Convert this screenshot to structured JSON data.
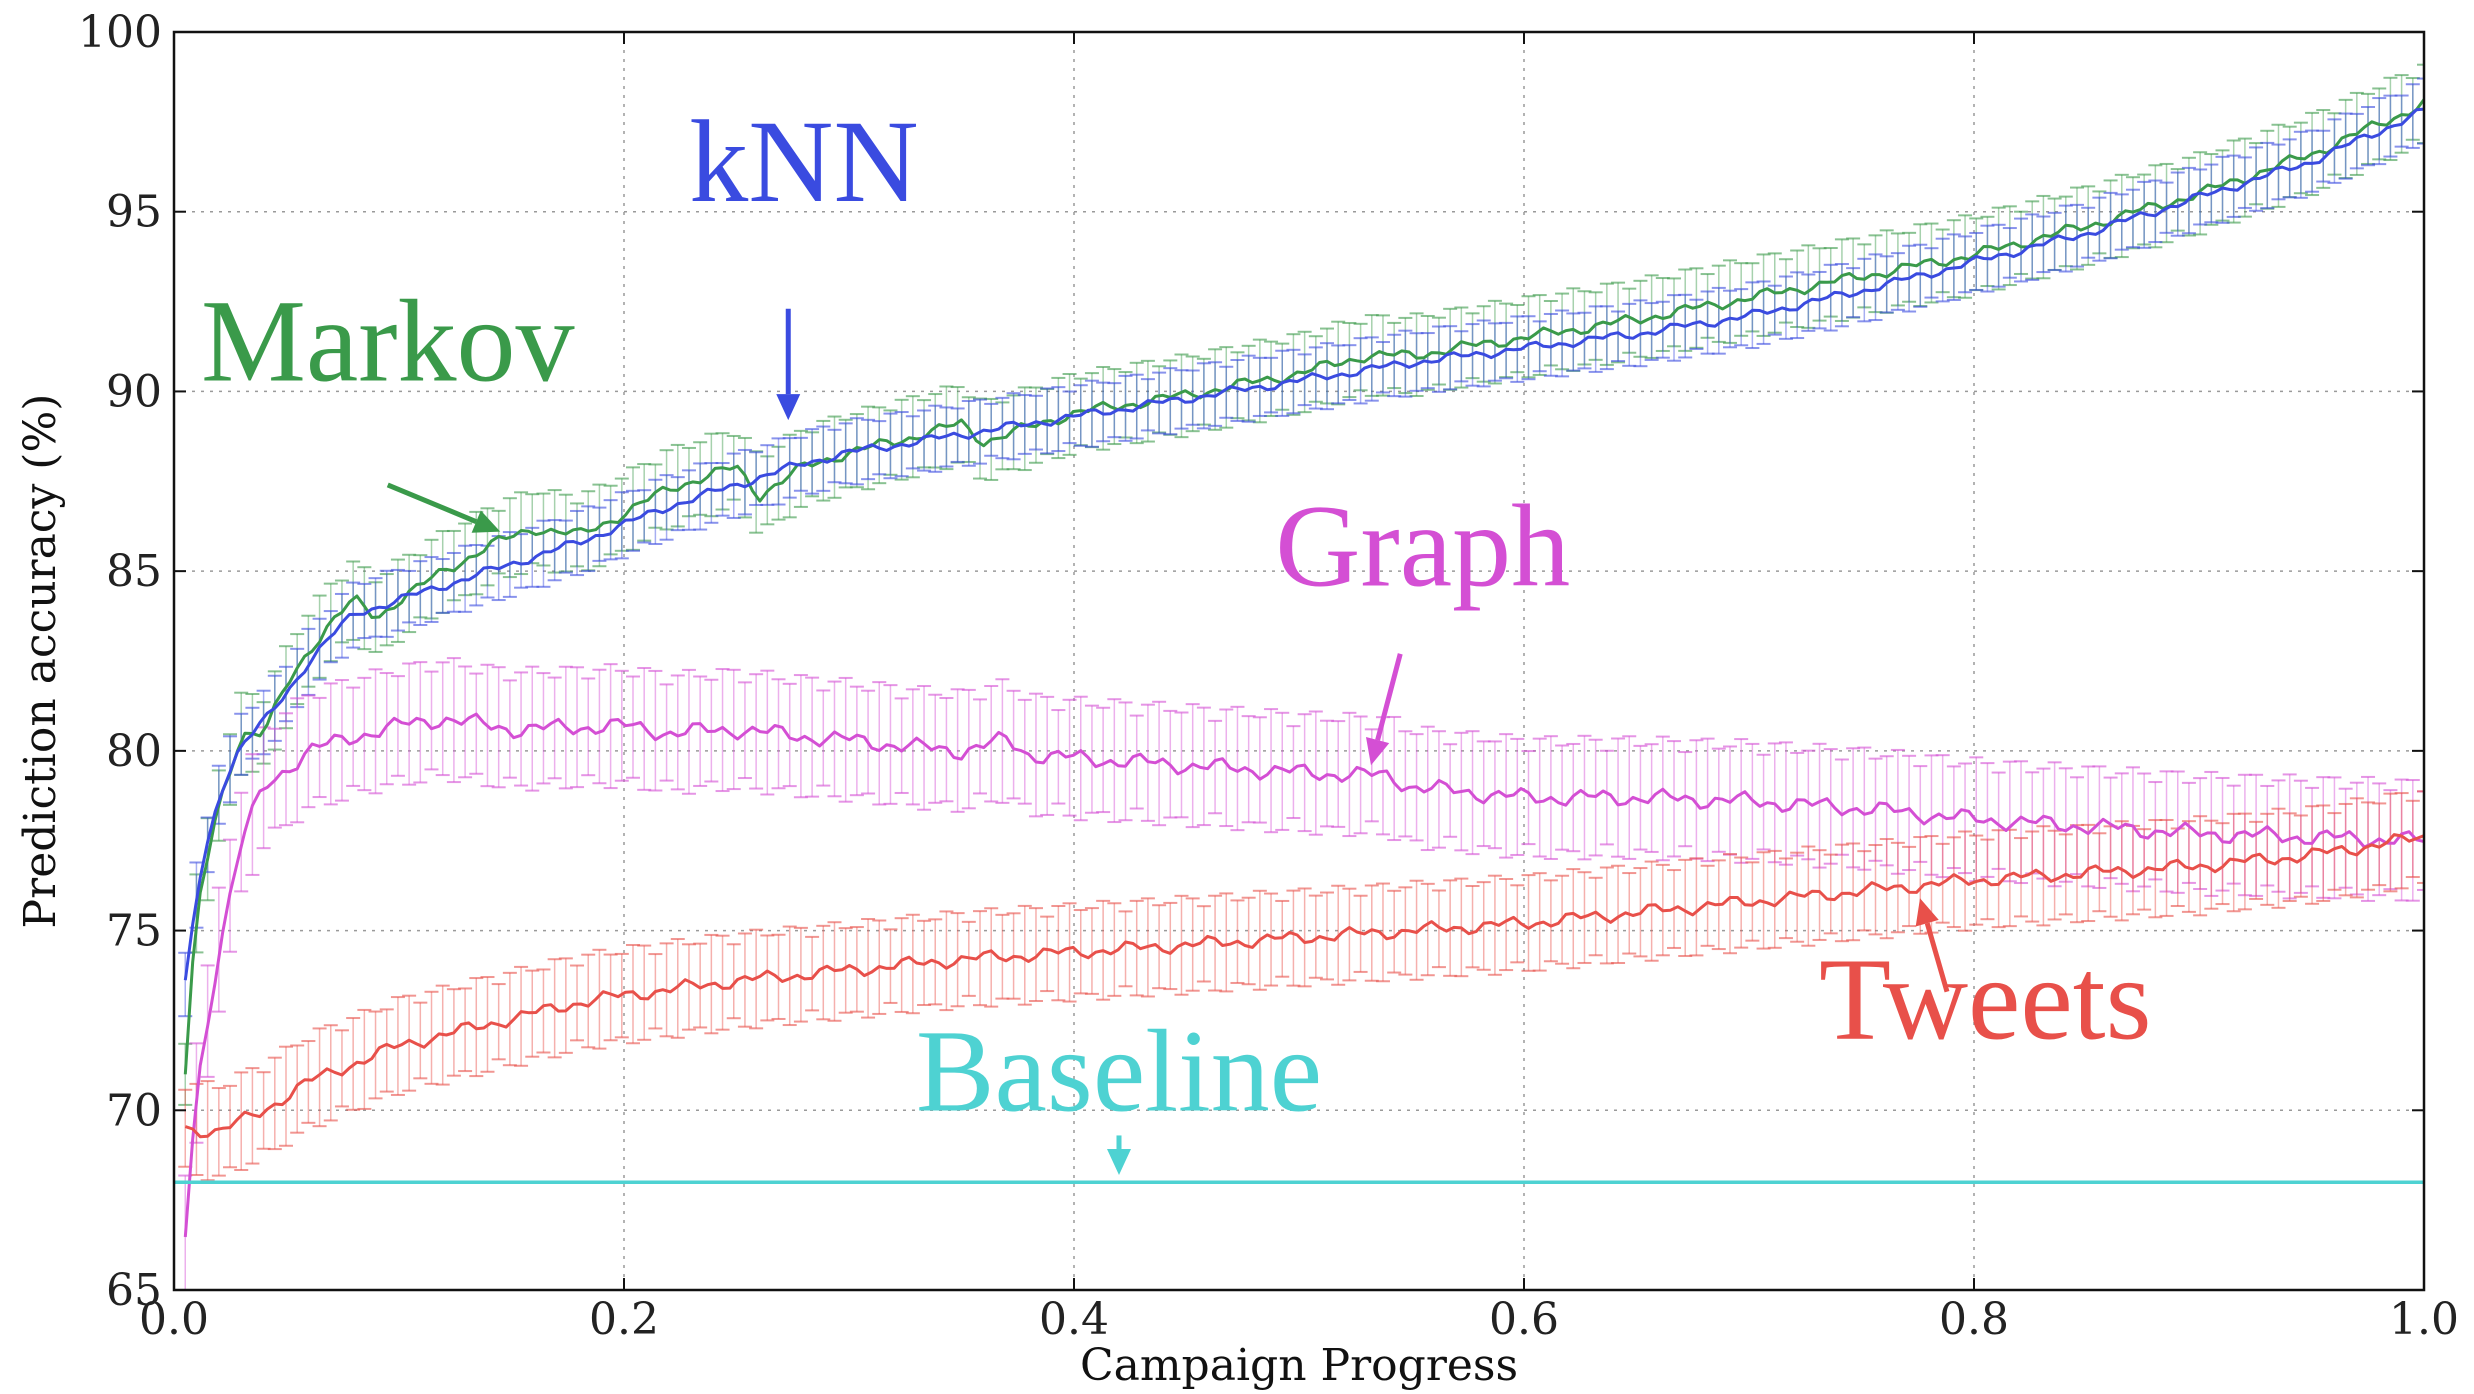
{
  "chart_data": {
    "type": "line",
    "xlabel": "Campaign Progress",
    "ylabel": "Prediction accuracy (%)",
    "xlim": [
      0.0,
      1.0
    ],
    "ylim": [
      65,
      100
    ],
    "x_ticks": [
      "0.0",
      "0.2",
      "0.4",
      "0.6",
      "0.8",
      "1.0"
    ],
    "y_ticks": [
      "65",
      "70",
      "75",
      "80",
      "85",
      "90",
      "95",
      "100"
    ],
    "grid": true,
    "series": [
      {
        "name": "Markov",
        "color": "#3a9a4a",
        "error": 1.0,
        "points": [
          [
            0.005,
            71.0
          ],
          [
            0.01,
            75.5
          ],
          [
            0.02,
            78.5
          ],
          [
            0.03,
            80.5
          ],
          [
            0.04,
            80.5
          ],
          [
            0.05,
            81.8
          ],
          [
            0.06,
            82.8
          ],
          [
            0.07,
            83.6
          ],
          [
            0.08,
            84.2
          ],
          [
            0.09,
            83.7
          ],
          [
            0.1,
            84.2
          ],
          [
            0.12,
            85.0
          ],
          [
            0.14,
            85.7
          ],
          [
            0.16,
            86.2
          ],
          [
            0.18,
            86.0
          ],
          [
            0.2,
            86.6
          ],
          [
            0.22,
            87.3
          ],
          [
            0.24,
            87.7
          ],
          [
            0.25,
            87.9
          ],
          [
            0.26,
            87.1
          ],
          [
            0.28,
            87.9
          ],
          [
            0.3,
            88.3
          ],
          [
            0.32,
            88.6
          ],
          [
            0.35,
            89.1
          ],
          [
            0.36,
            88.6
          ],
          [
            0.38,
            89.0
          ],
          [
            0.4,
            89.4
          ],
          [
            0.45,
            89.9
          ],
          [
            0.5,
            90.5
          ],
          [
            0.53,
            91.0
          ],
          [
            0.55,
            91.0
          ],
          [
            0.6,
            91.5
          ],
          [
            0.65,
            92.0
          ],
          [
            0.7,
            92.6
          ],
          [
            0.75,
            93.2
          ],
          [
            0.8,
            93.8
          ],
          [
            0.85,
            94.6
          ],
          [
            0.9,
            95.5
          ],
          [
            0.95,
            96.6
          ],
          [
            1.0,
            98.0
          ]
        ]
      },
      {
        "name": "kNN",
        "color": "#3a4be0",
        "error": 0.8,
        "points": [
          [
            0.005,
            73.5
          ],
          [
            0.01,
            76.0
          ],
          [
            0.02,
            78.8
          ],
          [
            0.03,
            80.2
          ],
          [
            0.04,
            80.8
          ],
          [
            0.05,
            81.6
          ],
          [
            0.06,
            82.5
          ],
          [
            0.07,
            83.2
          ],
          [
            0.08,
            83.8
          ],
          [
            0.1,
            84.2
          ],
          [
            0.12,
            84.6
          ],
          [
            0.14,
            85.0
          ],
          [
            0.16,
            85.4
          ],
          [
            0.18,
            85.8
          ],
          [
            0.2,
            86.3
          ],
          [
            0.22,
            86.8
          ],
          [
            0.25,
            87.4
          ],
          [
            0.28,
            88.0
          ],
          [
            0.3,
            88.3
          ],
          [
            0.35,
            88.8
          ],
          [
            0.4,
            89.3
          ],
          [
            0.45,
            89.8
          ],
          [
            0.5,
            90.3
          ],
          [
            0.55,
            90.8
          ],
          [
            0.6,
            91.2
          ],
          [
            0.65,
            91.6
          ],
          [
            0.7,
            92.1
          ],
          [
            0.75,
            92.8
          ],
          [
            0.8,
            93.6
          ],
          [
            0.85,
            94.4
          ],
          [
            0.9,
            95.4
          ],
          [
            0.95,
            96.4
          ],
          [
            1.0,
            97.8
          ]
        ]
      },
      {
        "name": "Graph",
        "color": "#d44fd4",
        "error": 1.5,
        "points": [
          [
            0.005,
            66.5
          ],
          [
            0.01,
            70.5
          ],
          [
            0.02,
            74.5
          ],
          [
            0.03,
            77.5
          ],
          [
            0.04,
            79.0
          ],
          [
            0.05,
            79.5
          ],
          [
            0.06,
            80.0
          ],
          [
            0.08,
            80.4
          ],
          [
            0.1,
            80.7
          ],
          [
            0.12,
            80.9
          ],
          [
            0.15,
            80.6
          ],
          [
            0.2,
            80.7
          ],
          [
            0.22,
            80.5
          ],
          [
            0.25,
            80.6
          ],
          [
            0.28,
            80.4
          ],
          [
            0.3,
            80.3
          ],
          [
            0.33,
            80.1
          ],
          [
            0.35,
            80.0
          ],
          [
            0.37,
            80.3
          ],
          [
            0.38,
            79.9
          ],
          [
            0.4,
            79.8
          ],
          [
            0.45,
            79.6
          ],
          [
            0.5,
            79.4
          ],
          [
            0.54,
            79.3
          ],
          [
            0.55,
            79.0
          ],
          [
            0.6,
            78.7
          ],
          [
            0.65,
            78.7
          ],
          [
            0.7,
            78.6
          ],
          [
            0.75,
            78.4
          ],
          [
            0.8,
            78.1
          ],
          [
            0.85,
            77.9
          ],
          [
            0.9,
            77.7
          ],
          [
            0.95,
            77.6
          ],
          [
            1.0,
            77.5
          ]
        ]
      },
      {
        "name": "Tweets",
        "color": "#e8504a",
        "error": 1.2,
        "points": [
          [
            0.005,
            69.5
          ],
          [
            0.02,
            69.4
          ],
          [
            0.03,
            69.7
          ],
          [
            0.04,
            70.0
          ],
          [
            0.05,
            70.4
          ],
          [
            0.06,
            70.8
          ],
          [
            0.08,
            71.3
          ],
          [
            0.1,
            71.8
          ],
          [
            0.12,
            72.1
          ],
          [
            0.14,
            72.4
          ],
          [
            0.16,
            72.7
          ],
          [
            0.18,
            73.0
          ],
          [
            0.2,
            73.2
          ],
          [
            0.25,
            73.6
          ],
          [
            0.3,
            73.9
          ],
          [
            0.35,
            74.2
          ],
          [
            0.4,
            74.4
          ],
          [
            0.45,
            74.6
          ],
          [
            0.5,
            74.8
          ],
          [
            0.55,
            75.0
          ],
          [
            0.6,
            75.2
          ],
          [
            0.65,
            75.5
          ],
          [
            0.7,
            75.8
          ],
          [
            0.75,
            76.1
          ],
          [
            0.8,
            76.4
          ],
          [
            0.85,
            76.6
          ],
          [
            0.9,
            76.8
          ],
          [
            0.95,
            77.1
          ],
          [
            1.0,
            77.6
          ]
        ]
      },
      {
        "name": "Baseline",
        "color": "#4ed2d2",
        "error": 0,
        "points": [
          [
            0.0,
            68.0
          ],
          [
            1.0,
            68.0
          ]
        ]
      }
    ],
    "annotations": [
      {
        "text": "kNN",
        "color": "#3a4be0",
        "text_at": [
          0.28,
          95.3
        ],
        "arrow_from": [
          0.273,
          92.3
        ],
        "arrow_to": [
          0.273,
          89.2
        ]
      },
      {
        "text": "Markov",
        "color": "#3a9a4a",
        "text_at": [
          0.095,
          90.3
        ],
        "arrow_from": [
          0.095,
          87.4
        ],
        "arrow_to": [
          0.145,
          86.1
        ]
      },
      {
        "text": "Graph",
        "color": "#d44fd4",
        "text_at": [
          0.555,
          84.6
        ],
        "arrow_from": [
          0.545,
          82.7
        ],
        "arrow_to": [
          0.532,
          79.6
        ]
      },
      {
        "text": "Tweets",
        "color": "#e8504a",
        "text_at": [
          0.805,
          72.0
        ],
        "arrow_from": [
          0.788,
          73.3
        ],
        "arrow_to": [
          0.776,
          75.9
        ]
      },
      {
        "text": "Baseline",
        "color": "#4ed2d2",
        "text_at": [
          0.42,
          70.0
        ],
        "arrow_from": [
          0.42,
          69.3
        ],
        "arrow_to": [
          0.42,
          68.2
        ]
      }
    ]
  }
}
